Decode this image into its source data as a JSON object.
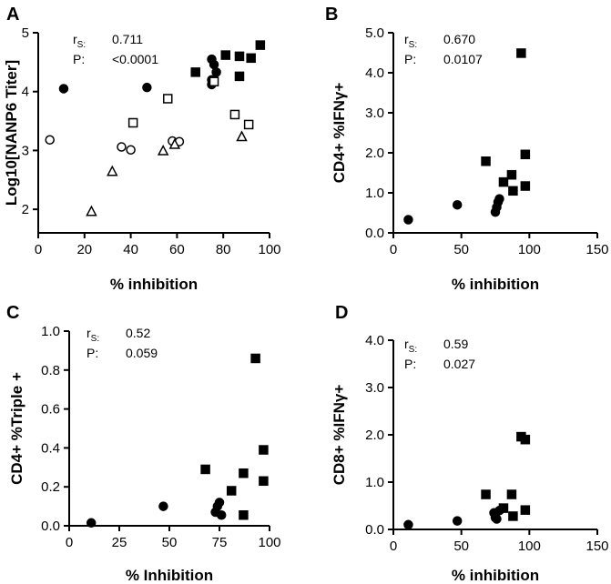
{
  "figure": {
    "panels": [
      "A",
      "B",
      "C",
      "D"
    ]
  },
  "chart_data": [
    {
      "panel": "A",
      "type": "scatter",
      "xlabel": "% inhibition",
      "ylabel": "Log10[NANP6 Titer]",
      "xlim": [
        0,
        100
      ],
      "ylim": [
        1.6,
        5.0
      ],
      "xticks": [
        0,
        20,
        40,
        60,
        80,
        100
      ],
      "yticks": [
        2,
        3,
        4,
        5
      ],
      "stats": {
        "r_label": "r",
        "r_sub": "S:",
        "r_value": "0.711",
        "p_label": "P:",
        "p_value": "<0.0001"
      },
      "series": [
        {
          "name": "filled circles",
          "marker": "circle",
          "filled": true,
          "points": [
            [
              11,
              4.05
            ],
            [
              47,
              4.07
            ],
            [
              75,
              4.12
            ],
            [
              75,
              4.55
            ],
            [
              76,
              4.46
            ],
            [
              77,
              4.33
            ],
            [
              75,
              4.2
            ]
          ]
        },
        {
          "name": "filled squares",
          "marker": "square",
          "filled": true,
          "points": [
            [
              68,
              4.33
            ],
            [
              81,
              4.62
            ],
            [
              87,
              4.6
            ],
            [
              87,
              4.26
            ],
            [
              92,
              4.57
            ],
            [
              96,
              4.79
            ]
          ]
        },
        {
          "name": "open circles",
          "marker": "circle",
          "filled": false,
          "points": [
            [
              5,
              3.18
            ],
            [
              36,
              3.06
            ],
            [
              40,
              3.01
            ],
            [
              58,
              3.16
            ],
            [
              61,
              3.15
            ]
          ]
        },
        {
          "name": "open squares",
          "marker": "square",
          "filled": false,
          "points": [
            [
              41,
              3.47
            ],
            [
              56,
              3.88
            ],
            [
              76,
              4.17
            ],
            [
              85,
              3.61
            ],
            [
              91,
              3.44
            ]
          ]
        },
        {
          "name": "open triangles",
          "marker": "triangle",
          "filled": false,
          "points": [
            [
              23,
              1.96
            ],
            [
              32,
              2.64
            ],
            [
              54,
              2.99
            ],
            [
              59,
              3.1
            ],
            [
              88,
              3.23
            ]
          ]
        }
      ]
    },
    {
      "panel": "B",
      "type": "scatter",
      "xlabel": "% inhibition",
      "ylabel": "CD4+ %IFNγ+",
      "xlim": [
        0,
        150
      ],
      "ylim": [
        0,
        5.0
      ],
      "xticks": [
        0,
        50,
        100,
        150
      ],
      "yticks": [
        0.0,
        1.0,
        2.0,
        3.0,
        4.0,
        5.0
      ],
      "tick_format": 1,
      "stats": {
        "r_label": "r",
        "r_sub": "S:",
        "r_value": "0.670",
        "p_label": "P:",
        "p_value": "0.0107"
      },
      "series": [
        {
          "name": "filled circles",
          "marker": "circle",
          "filled": true,
          "points": [
            [
              11,
              0.33
            ],
            [
              47,
              0.7
            ],
            [
              75,
              0.52
            ],
            [
              76,
              0.64
            ],
            [
              77,
              0.77
            ],
            [
              78,
              0.85
            ]
          ]
        },
        {
          "name": "filled squares",
          "marker": "square",
          "filled": true,
          "points": [
            [
              68,
              1.79
            ],
            [
              81,
              1.27
            ],
            [
              87,
              1.45
            ],
            [
              88,
              1.05
            ],
            [
              94,
              4.49
            ],
            [
              97,
              1.96
            ],
            [
              97,
              1.17
            ]
          ]
        }
      ]
    },
    {
      "panel": "C",
      "type": "scatter",
      "xlabel": "% Inhibition",
      "ylabel": "CD4+ %Triple +",
      "xlim": [
        0,
        100
      ],
      "ylim": [
        0,
        1.0
      ],
      "xticks": [
        0,
        25,
        50,
        75,
        100
      ],
      "yticks": [
        0.0,
        0.2,
        0.4,
        0.6,
        0.8,
        1.0
      ],
      "tick_format": 1,
      "stats": {
        "r_label": "r",
        "r_sub": "S:",
        "r_value": "0.52",
        "p_label": "P:",
        "p_value": "0.059"
      },
      "series": [
        {
          "name": "filled circles",
          "marker": "circle",
          "filled": true,
          "points": [
            [
              11,
              0.015
            ],
            [
              47,
              0.1
            ],
            [
              73,
              0.07
            ],
            [
              74,
              0.1
            ],
            [
              75,
              0.12
            ],
            [
              76,
              0.055
            ]
          ]
        },
        {
          "name": "filled squares",
          "marker": "square",
          "filled": true,
          "points": [
            [
              68,
              0.29
            ],
            [
              81,
              0.18
            ],
            [
              87,
              0.27
            ],
            [
              87,
              0.055
            ],
            [
              93,
              0.86
            ],
            [
              97,
              0.39
            ],
            [
              97,
              0.23
            ]
          ]
        }
      ]
    },
    {
      "panel": "D",
      "type": "scatter",
      "xlabel": "% inhibition",
      "ylabel": "CD8+ %IFNγ+",
      "xlim": [
        0,
        150
      ],
      "ylim": [
        0,
        4.0
      ],
      "xticks": [
        0,
        50,
        100,
        150
      ],
      "yticks": [
        0.0,
        1.0,
        2.0,
        3.0,
        4.0
      ],
      "tick_format": 1,
      "stats": {
        "r_label": "r",
        "r_sub": "S:",
        "r_value": "0.59",
        "p_label": "P:",
        "p_value": "0.027"
      },
      "series": [
        {
          "name": "filled circles",
          "marker": "circle",
          "filled": true,
          "points": [
            [
              11,
              0.1
            ],
            [
              47,
              0.18
            ],
            [
              74,
              0.35
            ],
            [
              75,
              0.25
            ],
            [
              76,
              0.22
            ],
            [
              78,
              0.4
            ]
          ]
        },
        {
          "name": "filled squares",
          "marker": "square",
          "filled": true,
          "points": [
            [
              68,
              0.74
            ],
            [
              81,
              0.45
            ],
            [
              87,
              0.74
            ],
            [
              88,
              0.28
            ],
            [
              94,
              1.96
            ],
            [
              97,
              1.9
            ],
            [
              97,
              0.41
            ]
          ]
        }
      ]
    }
  ]
}
